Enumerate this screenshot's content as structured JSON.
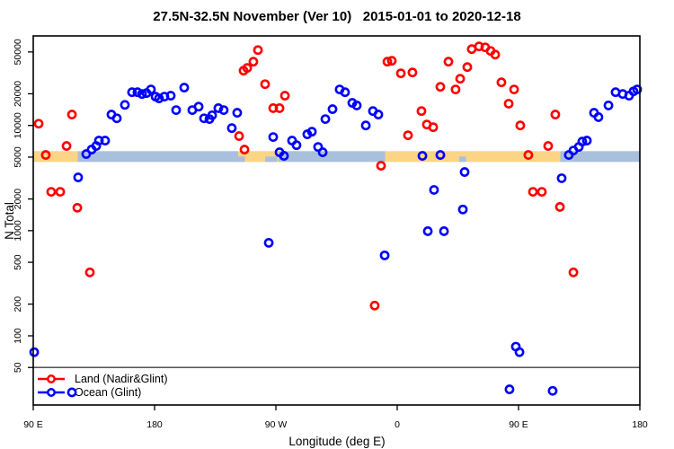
{
  "figure": {
    "title": "27.5N-32.5N November (Ver 10)   2015-01-01 to 2020-12-18",
    "xlabel": "Longitude (deg E)",
    "ylabel": "N Total"
  },
  "legend": {
    "items": [
      {
        "label": "Land (Nadir&Glint)",
        "color": "#ff0000"
      },
      {
        "label": "Ocean (Glint)",
        "color": "#0000ff"
      }
    ]
  },
  "chart_data": {
    "type": "scatter",
    "title": "27.5N-32.5N November (Ver 10)   2015-01-01 to 2020-12-18",
    "xlabel": "Longitude (deg E)",
    "ylabel": "N Total",
    "x_axis": {
      "note": "axis spans 450 deg starting at 90E, wrapping through 180, 90W, 0, 90E to 180; point x = deg east of 90E along axis",
      "ticks": [
        {
          "pos": 0,
          "label": "90 E"
        },
        {
          "pos": 90,
          "label": "180"
        },
        {
          "pos": 180,
          "label": "90 W"
        },
        {
          "pos": 270,
          "label": "0"
        },
        {
          "pos": 360,
          "label": "90 E"
        },
        {
          "pos": 450,
          "label": "180"
        }
      ],
      "range": [
        0,
        450
      ]
    },
    "y_axis": {
      "scale": "log",
      "ticks": [
        50,
        100,
        200,
        500,
        1000,
        2000,
        5000,
        10000,
        20000,
        50000
      ],
      "range": [
        22,
        71000
      ]
    },
    "threshold_line_y": 50,
    "surface_band": {
      "n_range": [
        4500,
        5700
      ],
      "land_color": "#fbd486",
      "ocean_color": "#a9c0dc",
      "segments": [
        {
          "from": 0,
          "to": 33,
          "type": "land"
        },
        {
          "from": 33,
          "to": 152,
          "type": "ocean"
        },
        {
          "from": 152,
          "to": 182,
          "type": "land"
        },
        {
          "from": 182,
          "to": 261,
          "type": "ocean"
        },
        {
          "from": 261,
          "to": 391,
          "type": "land"
        },
        {
          "from": 391,
          "to": 450,
          "type": "ocean"
        }
      ],
      "ocean_notches": [
        {
          "from": 152,
          "to": 157
        },
        {
          "from": 172,
          "to": 181
        },
        {
          "from": 316,
          "to": 321
        }
      ]
    },
    "series": [
      {
        "name": "Land (Nadir&Glint)",
        "color": "#ff0000",
        "marker": "open-circle",
        "points": [
          [
            4,
            10400
          ],
          [
            28.7,
            12700
          ],
          [
            24.7,
            6380
          ],
          [
            9.3,
            5240
          ],
          [
            13.3,
            2340
          ],
          [
            20,
            2340
          ],
          [
            32.7,
            1650
          ],
          [
            42,
            401
          ],
          [
            152.7,
            7930
          ],
          [
            156.7,
            5900
          ],
          [
            156,
            33200
          ],
          [
            158.7,
            35200
          ],
          [
            163.3,
            40400
          ],
          [
            166.7,
            52100
          ],
          [
            172,
            24700
          ],
          [
            186.7,
            19200
          ],
          [
            178,
            14600
          ],
          [
            182.7,
            14600
          ],
          [
            253.3,
            194
          ],
          [
            258,
            4140
          ],
          [
            262.7,
            40400
          ],
          [
            266,
            41200
          ],
          [
            272.7,
            31300
          ],
          [
            281.3,
            31900
          ],
          [
            278,
            8070
          ],
          [
            288,
            13700
          ],
          [
            292,
            10200
          ],
          [
            296.7,
            9630
          ],
          [
            302,
            23300
          ],
          [
            308,
            40400
          ],
          [
            313.3,
            22000
          ],
          [
            316.7,
            27800
          ],
          [
            322,
            35900
          ],
          [
            325.3,
            53200
          ],
          [
            330.7,
            56400
          ],
          [
            335.3,
            55300
          ],
          [
            339.3,
            51100
          ],
          [
            342.7,
            47200
          ],
          [
            347.3,
            25700
          ],
          [
            352.7,
            16100
          ],
          [
            356.7,
            22000
          ],
          [
            361.3,
            10000
          ],
          [
            367.3,
            5240
          ],
          [
            370.7,
            2340
          ],
          [
            377.3,
            2340
          ],
          [
            382,
            6380
          ],
          [
            387.3,
            12700
          ],
          [
            390.7,
            1680
          ],
          [
            400.7,
            401
          ]
        ]
      },
      {
        "name": "Ocean (Glint)",
        "color": "#0000ff",
        "marker": "open-circle",
        "points": [
          [
            0.7,
            70
          ],
          [
            28.7,
            29
          ],
          [
            33.3,
            3210
          ],
          [
            39.3,
            5350
          ],
          [
            43.3,
            5900
          ],
          [
            46.7,
            6380
          ],
          [
            48.7,
            7180
          ],
          [
            53.3,
            7180
          ],
          [
            58,
            12700
          ],
          [
            62,
            11700
          ],
          [
            68,
            15700
          ],
          [
            73.3,
            20700
          ],
          [
            77.3,
            20700
          ],
          [
            80.7,
            19900
          ],
          [
            84,
            20300
          ],
          [
            87.3,
            22000
          ],
          [
            90.7,
            18800
          ],
          [
            93.3,
            18100
          ],
          [
            97.3,
            18800
          ],
          [
            102,
            19200
          ],
          [
            106,
            14000
          ],
          [
            112,
            22900
          ],
          [
            118,
            14000
          ],
          [
            122.7,
            15100
          ],
          [
            126.7,
            11700
          ],
          [
            130.7,
            11500
          ],
          [
            132.7,
            12500
          ],
          [
            137.3,
            14600
          ],
          [
            141.3,
            14000
          ],
          [
            147.3,
            9440
          ],
          [
            151.3,
            13200
          ],
          [
            174.7,
            766
          ],
          [
            178,
            7760
          ],
          [
            182.7,
            5560
          ],
          [
            186,
            5140
          ],
          [
            192,
            7180
          ],
          [
            195.3,
            6500
          ],
          [
            203.3,
            8240
          ],
          [
            206.7,
            8730
          ],
          [
            211.3,
            6250
          ],
          [
            214.7,
            5560
          ],
          [
            216.7,
            11500
          ],
          [
            222,
            14300
          ],
          [
            227.3,
            22000
          ],
          [
            231.3,
            20700
          ],
          [
            236.7,
            16400
          ],
          [
            240,
            15500
          ],
          [
            246.7,
            10000
          ],
          [
            252,
            13700
          ],
          [
            256,
            12700
          ],
          [
            260.7,
            582
          ],
          [
            288.7,
            5140
          ],
          [
            292.7,
            988
          ],
          [
            297.3,
            2440
          ],
          [
            302,
            5240
          ],
          [
            304.7,
            988
          ],
          [
            318.7,
            1590
          ],
          [
            320,
            3610
          ],
          [
            353.3,
            31
          ],
          [
            358,
            79
          ],
          [
            360.7,
            70
          ],
          [
            385.3,
            30
          ],
          [
            392,
            3150
          ],
          [
            397.3,
            5240
          ],
          [
            400.7,
            5780
          ],
          [
            404.7,
            6250
          ],
          [
            407.3,
            7030
          ],
          [
            410.7,
            7180
          ],
          [
            416,
            13200
          ],
          [
            419.3,
            12000
          ],
          [
            426.7,
            15500
          ],
          [
            432,
            20700
          ],
          [
            437.3,
            19900
          ],
          [
            442,
            19200
          ],
          [
            445.3,
            21100
          ],
          [
            448,
            22000
          ]
        ]
      }
    ]
  }
}
